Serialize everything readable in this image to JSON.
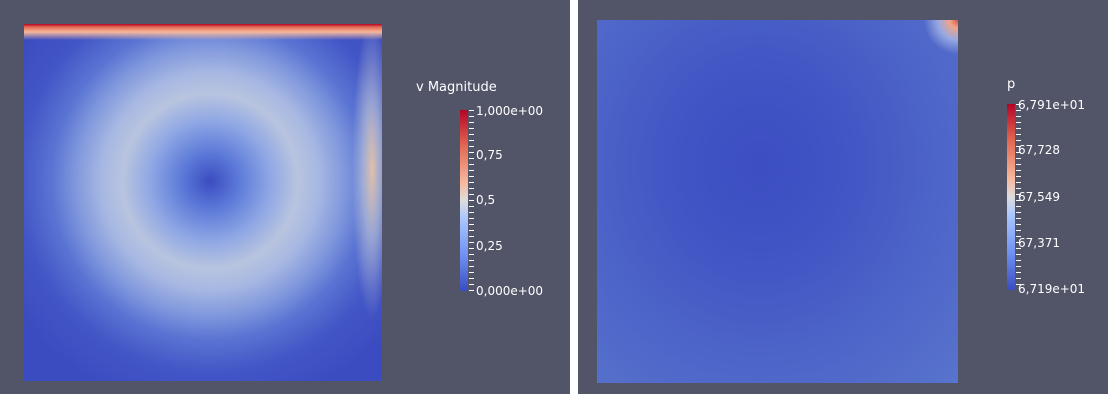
{
  "left_panel": {
    "legend_title": "v Magnitude",
    "tick_labels": [
      "1,000e+00",
      "0,75",
      "0,5",
      "0,25",
      "0,000e+00"
    ]
  },
  "right_panel": {
    "legend_title": "p",
    "tick_labels": [
      "6,791e+01",
      "67,728",
      "67,549",
      "67,371",
      "6,719e+01"
    ]
  },
  "colormap": {
    "name": "cool-to-warm",
    "stops": [
      "#3b4cc0",
      "#6f92f3",
      "#aac7fd",
      "#dddddd",
      "#f7b89c",
      "#e26952",
      "#b40426"
    ]
  },
  "background_color": "#525468"
}
